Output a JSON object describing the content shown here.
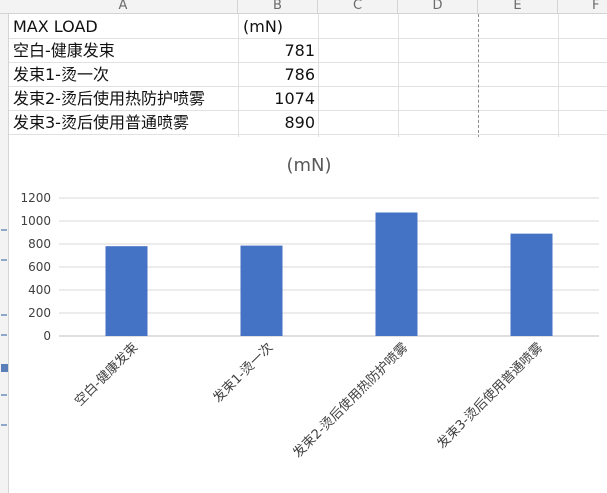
{
  "columns": [
    "A",
    "B",
    "C",
    "D",
    "E",
    "F"
  ],
  "sheet": {
    "header_label": "MAX LOAD",
    "header_unit": "(mN)",
    "rows": [
      {
        "label": "空白-健康发束",
        "value": "781"
      },
      {
        "label": "发束1-烫一次",
        "value": "786"
      },
      {
        "label": "发束2-烫后使用热防护喷雾",
        "value": "1074"
      },
      {
        "label": "发束3-烫后使用普通喷雾",
        "value": "890"
      }
    ]
  },
  "chart_data": {
    "type": "bar",
    "title": "(mN)",
    "categories": [
      "空白-健康发束",
      "发束1-烫一次",
      "发束2-烫后使用热防护喷雾",
      "发束3-烫后使用普通喷雾"
    ],
    "values": [
      781,
      786,
      1074,
      890
    ],
    "ylim": [
      0,
      1200
    ],
    "yticks": [
      0,
      200,
      400,
      600,
      800,
      1000,
      1200
    ],
    "grid": true,
    "bar_color": "#4472c4"
  }
}
